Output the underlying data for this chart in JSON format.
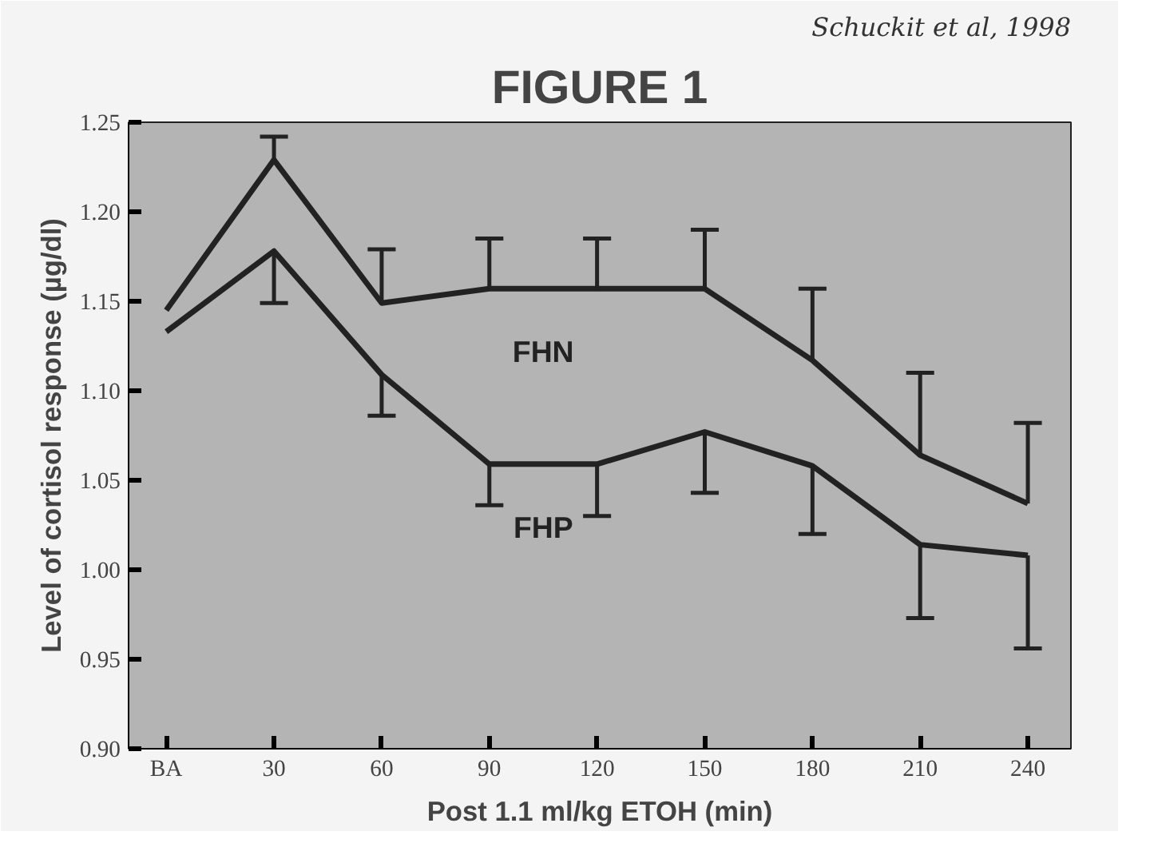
{
  "chart_data": {
    "type": "line",
    "title": "FIGURE 1",
    "xlabel": "Post 1.1 ml/kg ETOH (min)",
    "ylabel": "Level of cortisol response (µg/dl)",
    "annotations": [
      "Schuckit et al, 1998"
    ],
    "categories": [
      "BA",
      "30",
      "60",
      "90",
      "120",
      "150",
      "180",
      "210",
      "240"
    ],
    "ylim": [
      0.9,
      1.25
    ],
    "yticks": [
      {
        "value": 0.9,
        "label": "0.90"
      },
      {
        "value": 0.95,
        "label": "0.95"
      },
      {
        "value": 1.0,
        "label": "1.00"
      },
      {
        "value": 1.05,
        "label": "1.05"
      },
      {
        "value": 1.1,
        "label": "1.10"
      },
      {
        "value": 1.15,
        "label": "1.15"
      },
      {
        "value": 1.2,
        "label": "1.20"
      },
      {
        "value": 1.25,
        "label": "1.25"
      }
    ],
    "grid": false,
    "marker": "none",
    "line_style": "solid",
    "series": [
      {
        "name": "FHN",
        "color": "#222222",
        "values": [
          1.145,
          1.229,
          1.149,
          1.157,
          1.157,
          1.157,
          1.117,
          1.064,
          1.037
        ],
        "errors": [
          null,
          [
            1.229,
            1.242
          ],
          [
            1.149,
            1.179
          ],
          [
            1.157,
            1.185
          ],
          [
            1.157,
            1.185
          ],
          [
            1.157,
            1.19
          ],
          [
            1.117,
            1.157
          ],
          [
            1.064,
            1.11
          ],
          [
            1.037,
            1.082
          ]
        ]
      },
      {
        "name": "FHP",
        "color": "#222222",
        "values": [
          1.133,
          1.178,
          1.109,
          1.059,
          1.059,
          1.077,
          1.058,
          1.014,
          1.008
        ],
        "errors": [
          null,
          [
            1.149,
            1.178
          ],
          [
            1.086,
            1.109
          ],
          [
            1.036,
            1.059
          ],
          [
            1.03,
            1.059
          ],
          [
            1.043,
            1.077
          ],
          [
            1.02,
            1.058
          ],
          [
            0.973,
            1.014
          ],
          [
            0.956,
            1.008
          ]
        ]
      }
    ]
  }
}
